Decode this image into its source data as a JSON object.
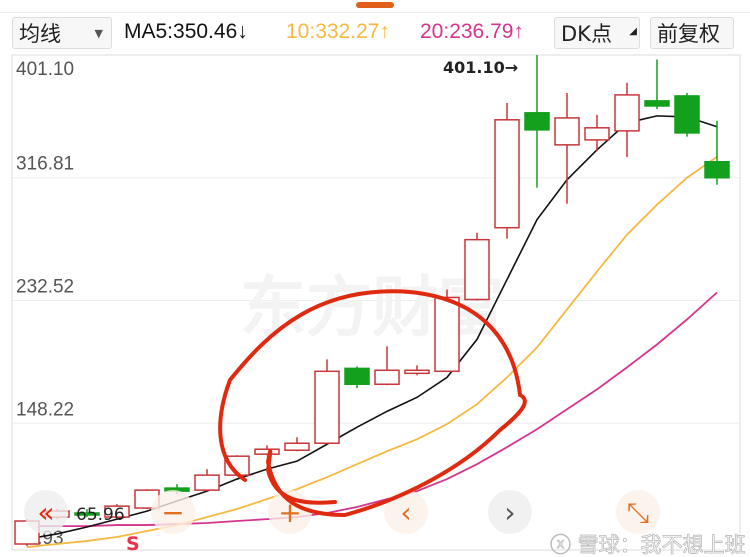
{
  "toolbar": {
    "indicator": "均线",
    "ma5": "MA5:350.46↓",
    "ma10": "10:332.27↑",
    "ma20": "20:236.79↑",
    "dk": "DK点",
    "adjust": "前复权"
  },
  "colors": {
    "up": "#c8353a",
    "down": "#13a01c",
    "ma5": "#111111",
    "ma10": "#f5b840",
    "ma20": "#d6358f",
    "annotation": "#e02a10"
  },
  "icons": [
    "back-icon",
    "zoom-out-icon",
    "zoom-in-icon",
    "chevron-left-icon",
    "chevron-right-icon",
    "fullscreen-icon"
  ],
  "watermark": "东方财富",
  "credit": "雪球：我不想上班",
  "chart_data": {
    "type": "candlestick",
    "y_ticks": [
      "401.10",
      "316.81",
      "232.52",
      "148.22",
      "63.93"
    ],
    "ylim": [
      63.93,
      401.1
    ],
    "max_label": "401.10→",
    "min_label": "65.96",
    "signal_label": "S",
    "candles": [
      {
        "o": 65.3,
        "c": 81.1,
        "h": 82.4,
        "l": 63.9
      },
      {
        "o": 83.8,
        "c": 87.9,
        "h": 89.3,
        "l": 82.4
      },
      {
        "o": 86.6,
        "c": 86.0,
        "h": 89.3,
        "l": 83.8
      },
      {
        "o": 83.8,
        "c": 91.3,
        "h": 92.7,
        "l": 82.4
      },
      {
        "o": 90.0,
        "c": 102.3,
        "h": 103.0,
        "l": 89.3
      },
      {
        "o": 103.7,
        "c": 101.6,
        "h": 106.4,
        "l": 99.6
      },
      {
        "o": 102.3,
        "c": 112.6,
        "h": 116.7,
        "l": 101.6
      },
      {
        "o": 112.6,
        "c": 125.6,
        "h": 126.3,
        "l": 111.9
      },
      {
        "o": 127.0,
        "c": 130.4,
        "h": 133.1,
        "l": 126.3
      },
      {
        "o": 129.7,
        "c": 134.5,
        "h": 138.6,
        "l": 129.0
      },
      {
        "o": 134.5,
        "c": 183.9,
        "h": 192.1,
        "l": 134.5
      },
      {
        "o": 185.9,
        "c": 175.0,
        "h": 187.3,
        "l": 172.3
      },
      {
        "o": 175.0,
        "c": 184.6,
        "h": 201.0,
        "l": 174.3
      },
      {
        "o": 182.5,
        "c": 184.6,
        "h": 188.0,
        "l": 181.2
      },
      {
        "o": 183.9,
        "c": 234.6,
        "h": 240.1,
        "l": 183.9
      },
      {
        "o": 233.2,
        "c": 274.3,
        "h": 279.1,
        "l": 232.5
      },
      {
        "o": 282.5,
        "c": 356.6,
        "h": 368.2,
        "l": 275.0
      },
      {
        "o": 361.4,
        "c": 349.7,
        "h": 401.1,
        "l": 310.0
      },
      {
        "o": 339.4,
        "c": 357.9,
        "h": 375.0,
        "l": 299.0
      },
      {
        "o": 342.8,
        "c": 351.1,
        "h": 360.0,
        "l": 335.0
      },
      {
        "o": 349.0,
        "c": 373.7,
        "h": 382.0,
        "l": 331.0
      },
      {
        "o": 369.6,
        "c": 366.1,
        "h": 398.0,
        "l": 364.0
      },
      {
        "o": 373.0,
        "c": 347.6,
        "h": 375.0,
        "l": 345.0
      },
      {
        "o": 327.8,
        "c": 316.8,
        "h": 356.0,
        "l": 312.0
      }
    ],
    "ma5": [
      68.7,
      72.2,
      77,
      82.4,
      87.9,
      94.8,
      101.6,
      109.9,
      116.7,
      122.2,
      133.8,
      145.5,
      156.4,
      166,
      179.7,
      205.8,
      246.9,
      288,
      315.4,
      336,
      354.5,
      359.3,
      358.6,
      351.8
    ],
    "ma10": [
      63.2,
      65.3,
      67.4,
      70.1,
      74.2,
      78.3,
      83.8,
      89.3,
      96.1,
      103,
      111.2,
      120.1,
      129,
      137.2,
      147.6,
      161.3,
      179.7,
      200.3,
      226.4,
      252.4,
      277.7,
      298.3,
      316.8,
      331.2
    ],
    "ma20": [
      77.6,
      77.6,
      77.6,
      78.3,
      78.3,
      79,
      79.7,
      81.1,
      82.4,
      83.8,
      86.6,
      90.7,
      96.1,
      101.6,
      109.9,
      120.1,
      131.8,
      144.1,
      157.8,
      171.5,
      186.6,
      202.3,
      219.5,
      238
    ]
  }
}
